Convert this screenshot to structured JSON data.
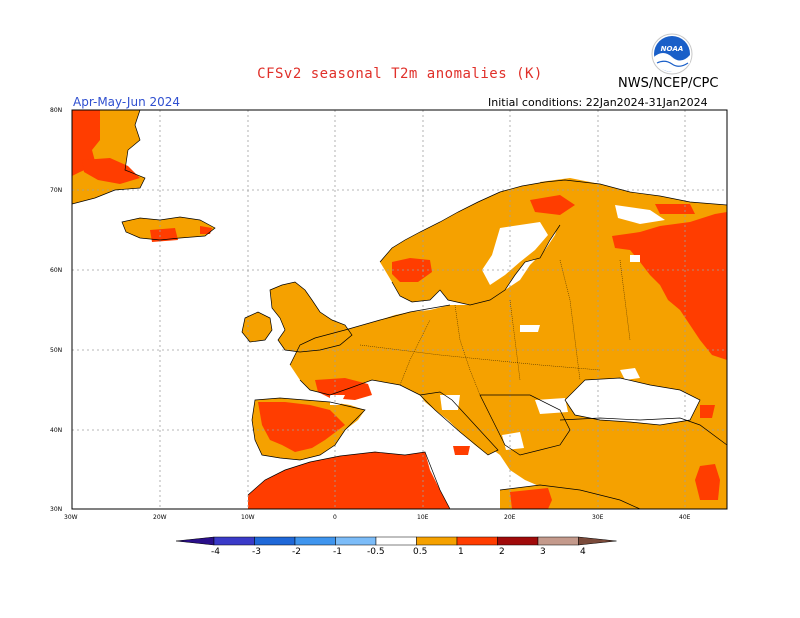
{
  "title": "CFSv2 seasonal T2m anomalies (K)",
  "agency": "NWS/NCEP/CPC",
  "logo_text": "NOAA",
  "season": "Apr-May-Jun 2024",
  "initial_conditions": "Initial conditions: 22Jan2024-31Jan2024",
  "lat_labels": [
    "80N",
    "70N",
    "60N",
    "50N",
    "40N",
    "30N"
  ],
  "lon_labels": [
    "30W",
    "20W",
    "10W",
    "0",
    "10E",
    "20E",
    "30E",
    "40E"
  ],
  "colorbar": {
    "labels": [
      "-4",
      "-3",
      "-2",
      "-1",
      "-0.5",
      "0.5",
      "1",
      "2",
      "3",
      "4"
    ],
    "bins": [
      {
        "range": "< -4",
        "color": "#2a0f8a"
      },
      {
        "range": "-4 to -3",
        "color": "#3a3ac8"
      },
      {
        "range": "-3 to -2",
        "color": "#1f68d8"
      },
      {
        "range": "-2 to -1",
        "color": "#3f95ee"
      },
      {
        "range": "-1 to -0.5",
        "color": "#7cbcf8"
      },
      {
        "range": "-0.5 to 0.5",
        "color": "#ffffff"
      },
      {
        "range": "0.5 to 1",
        "color": "#f5a100"
      },
      {
        "range": "1 to 2",
        "color": "#ff3d00"
      },
      {
        "range": "2 to 3",
        "color": "#a00a0a"
      },
      {
        "range": "3 to 4",
        "color": "#c49a8c"
      },
      {
        "range": "> 4",
        "color": "#7a4a3a"
      }
    ]
  },
  "map_colors": {
    "anomaly_0_5_to_1": "#f5a100",
    "anomaly_1_to_2": "#ff3d00",
    "near_normal": "#ffffff",
    "coastline": "#000000",
    "gridline": "#a0a0a0"
  }
}
